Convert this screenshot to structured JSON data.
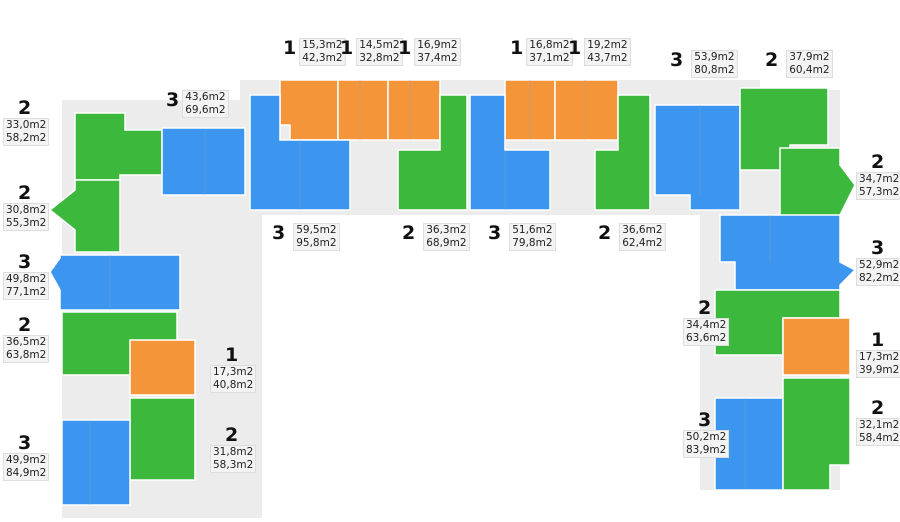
{
  "colors": {
    "one_room": "#f5953a",
    "two_room": "#3cb83c",
    "three_room": "#3c96f0",
    "wall": "#c8c8c8",
    "corridor": "#ececec"
  },
  "apartments": [
    {
      "rooms": "2",
      "living": "33,0m2",
      "total": "58,2m2",
      "color": "two_room"
    },
    {
      "rooms": "3",
      "living": "43,6m2",
      "total": "69,6m2",
      "color": "three_room"
    },
    {
      "rooms": "2",
      "living": "30,8m2",
      "total": "55,3m2",
      "color": "two_room"
    },
    {
      "rooms": "3",
      "living": "49,8m2",
      "total": "77,1m2",
      "color": "three_room"
    },
    {
      "rooms": "2",
      "living": "36,5m2",
      "total": "63,8m2",
      "color": "two_room"
    },
    {
      "rooms": "1",
      "living": "17,3m2",
      "total": "40,8m2",
      "color": "one_room"
    },
    {
      "rooms": "2",
      "living": "31,8m2",
      "total": "58,3m2",
      "color": "two_room"
    },
    {
      "rooms": "3",
      "living": "49,9m2",
      "total": "84,9m2",
      "color": "three_room"
    },
    {
      "rooms": "1",
      "living": "15,3m2",
      "total": "42,3m2",
      "color": "one_room"
    },
    {
      "rooms": "1",
      "living": "14,5m2",
      "total": "32,8m2",
      "color": "one_room"
    },
    {
      "rooms": "1",
      "living": "16,9m2",
      "total": "37,4m2",
      "color": "one_room"
    },
    {
      "rooms": "1",
      "living": "16,8m2",
      "total": "37,1m2",
      "color": "one_room"
    },
    {
      "rooms": "1",
      "living": "19,2m2",
      "total": "43,7m2",
      "color": "one_room"
    },
    {
      "rooms": "3",
      "living": "59,5m2",
      "total": "95,8m2",
      "color": "three_room"
    },
    {
      "rooms": "2",
      "living": "36,3m2",
      "total": "68,9m2",
      "color": "two_room"
    },
    {
      "rooms": "3",
      "living": "51,6m2",
      "total": "79,8m2",
      "color": "three_room"
    },
    {
      "rooms": "2",
      "living": "36,6m2",
      "total": "62,4m2",
      "color": "two_room"
    },
    {
      "rooms": "3",
      "living": "53,9m2",
      "total": "80,8m2",
      "color": "three_room"
    },
    {
      "rooms": "2",
      "living": "37,9m2",
      "total": "60,4m2",
      "color": "two_room"
    },
    {
      "rooms": "2",
      "living": "34,7m2",
      "total": "57,3m2",
      "color": "two_room"
    },
    {
      "rooms": "3",
      "living": "52,9m2",
      "total": "82,2m2",
      "color": "three_room"
    },
    {
      "rooms": "2",
      "living": "34,4m2",
      "total": "63,6m2",
      "color": "two_room"
    },
    {
      "rooms": "1",
      "living": "17,3m2",
      "total": "39,9m2",
      "color": "one_room"
    },
    {
      "rooms": "3",
      "living": "50,2m2",
      "total": "83,9m2",
      "color": "three_room"
    },
    {
      "rooms": "2",
      "living": "32,1m2",
      "total": "58,4m2",
      "color": "two_room"
    }
  ]
}
